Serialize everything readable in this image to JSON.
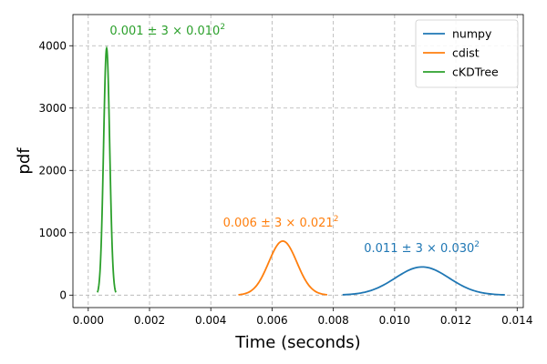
{
  "chart_data": {
    "type": "line",
    "xlabel": "Time (seconds)",
    "ylabel": "pdf",
    "xlim": [
      -0.0005,
      0.0142
    ],
    "ylim": [
      -200,
      4500
    ],
    "xticks": [
      0.0,
      0.002,
      0.004,
      0.006,
      0.008,
      0.01,
      0.012,
      0.014
    ],
    "xtick_labels": [
      "0.000",
      "0.002",
      "0.004",
      "0.006",
      "0.008",
      "0.010",
      "0.012",
      "0.014"
    ],
    "yticks": [
      0,
      1000,
      2000,
      3000,
      4000
    ],
    "ytick_labels": [
      "0",
      "1000",
      "2000",
      "3000",
      "4000"
    ],
    "grid": true,
    "legend_position": "top-right",
    "series": [
      {
        "name": "numpy",
        "color": "#1f77b4",
        "mean": 0.0109,
        "std": 0.00088,
        "x_range": [
          0.0083,
          0.0136
        ],
        "peak": 452,
        "annotation": {
          "prefix": "0.011 ± 3 × 0.030",
          "exponent": "2",
          "x": 0.009,
          "y": 690
        }
      },
      {
        "name": "cdist",
        "color": "#ff7f0e",
        "mean": 0.00635,
        "std": 0.00046,
        "x_range": [
          0.0049,
          0.0078
        ],
        "peak": 867,
        "annotation": {
          "prefix": "0.006 ± 3 × 0.021",
          "exponent": "2",
          "x": 0.0044,
          "y": 1100
        }
      },
      {
        "name": "cKDTree",
        "color": "#2ca02c",
        "mean": 0.0006,
        "std": 0.0001,
        "x_range": [
          0.0003,
          0.0009
        ],
        "peak": 3960,
        "annotation": {
          "prefix": "0.001 ± 3 × 0.010",
          "exponent": "2",
          "x": 0.0007,
          "y": 4180
        }
      }
    ]
  }
}
